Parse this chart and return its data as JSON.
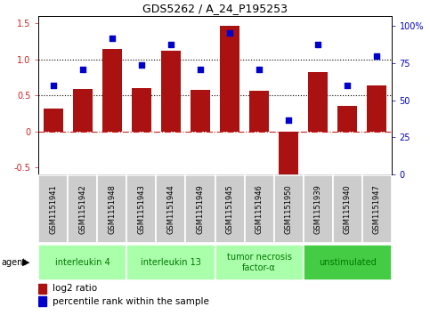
{
  "title": "GDS5262 / A_24_P195253",
  "samples": [
    "GSM1151941",
    "GSM1151942",
    "GSM1151948",
    "GSM1151943",
    "GSM1151944",
    "GSM1151949",
    "GSM1151945",
    "GSM1151946",
    "GSM1151950",
    "GSM1151939",
    "GSM1151940",
    "GSM1151947"
  ],
  "log2_ratio": [
    0.32,
    0.59,
    1.14,
    0.6,
    1.12,
    0.58,
    1.46,
    0.56,
    -0.6,
    0.82,
    0.35,
    0.64
  ],
  "percentile_left_coords": [
    0.64,
    0.86,
    1.29,
    0.92,
    1.21,
    0.86,
    1.37,
    0.86,
    0.15,
    1.2,
    0.64,
    1.04
  ],
  "agents": [
    {
      "label": "interleukin 4",
      "start": 0,
      "end": 2,
      "color": "#aaffaa"
    },
    {
      "label": "interleukin 13",
      "start": 3,
      "end": 5,
      "color": "#aaffaa"
    },
    {
      "label": "tumor necrosis\nfactor-α",
      "start": 6,
      "end": 8,
      "color": "#aaffaa"
    },
    {
      "label": "unstimulated",
      "start": 9,
      "end": 11,
      "color": "#44cc44"
    }
  ],
  "bar_color": "#aa1111",
  "dot_color": "#0000cc",
  "ylim_left": [
    -0.6,
    1.6
  ],
  "ylim_right": [
    0,
    106.67
  ],
  "yticks_left": [
    -0.5,
    0.0,
    0.5,
    1.0,
    1.5
  ],
  "ytick_labels_left": [
    "-0.5",
    "0",
    "0.5",
    "1.0",
    "1.5"
  ],
  "yticks_right": [
    0,
    25,
    50,
    75,
    100
  ],
  "ytick_labels_right": [
    "0",
    "25",
    "50",
    "75",
    "100%"
  ],
  "bar_width": 0.65,
  "background_color": "#ffffff",
  "cell_color": "#cccccc",
  "agent_label_color": "#007700"
}
